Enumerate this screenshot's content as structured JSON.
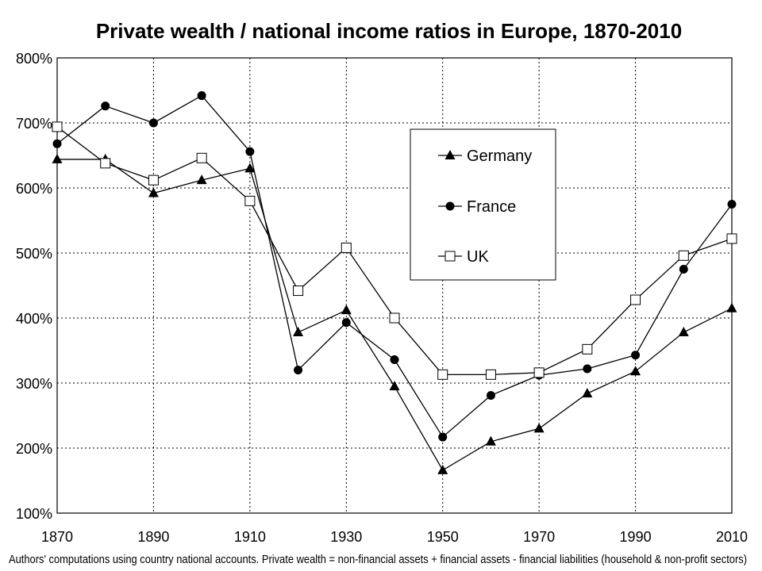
{
  "chart_data": {
    "type": "line",
    "title": "Private wealth / national income ratios in Europe, 1870-2010",
    "xlabel": "",
    "ylabel": "",
    "source_note": "Authors' computations using country national accounts. Private wealth = non-financial assets + financial assets - financial liabilities (household & non-profit sectors)",
    "x": [
      1870,
      1880,
      1890,
      1900,
      1910,
      1920,
      1930,
      1940,
      1950,
      1960,
      1970,
      1980,
      1990,
      2000,
      2010
    ],
    "x_ticks": [
      1870,
      1890,
      1910,
      1930,
      1950,
      1970,
      1990,
      2010
    ],
    "x_tick_labels": [
      "1870",
      "1890",
      "1910",
      "1930",
      "1950",
      "1970",
      "1990",
      "2010"
    ],
    "xlim": [
      1870,
      2010
    ],
    "ylim": [
      100,
      800
    ],
    "y_ticks": [
      100,
      200,
      300,
      400,
      500,
      600,
      700,
      800
    ],
    "y_tick_labels": [
      "100%",
      "200%",
      "300%",
      "400%",
      "500%",
      "600%",
      "700%",
      "800%"
    ],
    "grid": true,
    "legend": {
      "placement": "upper-middle-right",
      "entries": [
        "Germany",
        "France",
        "UK"
      ]
    },
    "series": [
      {
        "name": "Germany",
        "marker": "triangle",
        "values": [
          644,
          644,
          592,
          612,
          630,
          378,
          412,
          295,
          166,
          210,
          230,
          284,
          318,
          378,
          415
        ]
      },
      {
        "name": "France",
        "marker": "circle",
        "values": [
          668,
          726,
          700,
          742,
          656,
          320,
          393,
          336,
          217,
          281,
          312,
          322,
          343,
          475,
          575
        ]
      },
      {
        "name": "UK",
        "marker": "square",
        "values": [
          694,
          638,
          612,
          646,
          580,
          442,
          508,
          400,
          313,
          313,
          316,
          352,
          428,
          496,
          522
        ]
      }
    ]
  }
}
